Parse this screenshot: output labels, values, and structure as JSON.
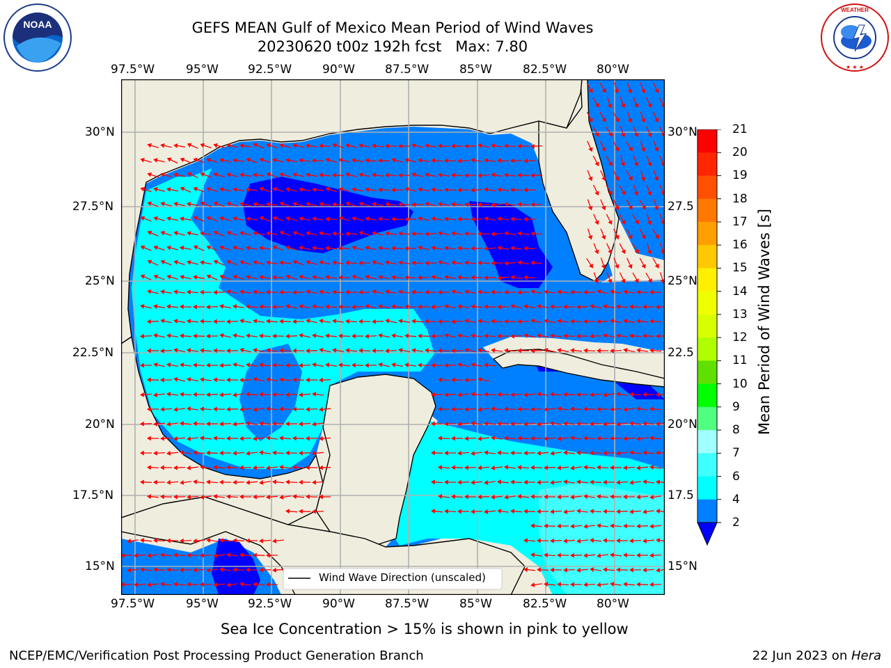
{
  "header": {
    "title_line1": "GEFS MEAN Gulf of Mexico Mean Period of Wind Waves",
    "title_line2": "20230620 t00z 192h fcst   Max: 7.80"
  },
  "logos": {
    "left": {
      "name": "NOAA",
      "ring_text": "NATIONAL OCEANIC AND ATMOSPHERIC ADMINISTRATION · U.S. DEPARTMENT OF COMMERCE"
    },
    "right": {
      "ring_text": "NATIONAL WEATHER SERVICE"
    }
  },
  "map": {
    "lon_labels": [
      "97.5°W",
      "95°W",
      "92.5°W",
      "90°W",
      "87.5°W",
      "85°W",
      "82.5°W",
      "80°W"
    ],
    "lat_labels_left": [
      "30°N",
      "27.5°N",
      "25°N",
      "22.5°N",
      "20°N",
      "17.5°N",
      "15°N"
    ],
    "lat_labels_right": [
      "30°N",
      "27.5",
      "25°N",
      "22.5",
      "20°N",
      "17.5",
      "15°N"
    ],
    "legend_label": "Wind Wave Direction (unscaled)",
    "colors": {
      "land": "#efedde",
      "deep_blue": "#0000ff",
      "blue": "#0080ff",
      "cyan": "#00ffff",
      "light_cyan": "#40ffff",
      "arrow": "#ff0000",
      "grid": "#b0b0b0"
    }
  },
  "colorbar": {
    "label": "Mean Period of Wind Waves [s]",
    "ticks": [
      "21",
      "20",
      "19",
      "18",
      "17",
      "16",
      "15",
      "14",
      "13",
      "12",
      "11",
      "10",
      "9",
      "8",
      "7",
      "6",
      "4",
      "2"
    ],
    "colors": [
      "#ff0000",
      "#ff2600",
      "#ff5000",
      "#ff7800",
      "#ffa000",
      "#ffc800",
      "#fff000",
      "#f0ff00",
      "#d8ff00",
      "#b0ff00",
      "#60e000",
      "#00ff00",
      "#50ff80",
      "#a0ffff",
      "#40ffff",
      "#00ffff",
      "#0080ff"
    ],
    "under_color": "#0000ff"
  },
  "footer": {
    "note": "Sea Ice Concentration > 15% is shown in pink to yellow",
    "left": "NCEP/EMC/Verification Post Processing Product Generation Branch",
    "date": "22 Jun 2023 on ",
    "machine": "Hera"
  }
}
